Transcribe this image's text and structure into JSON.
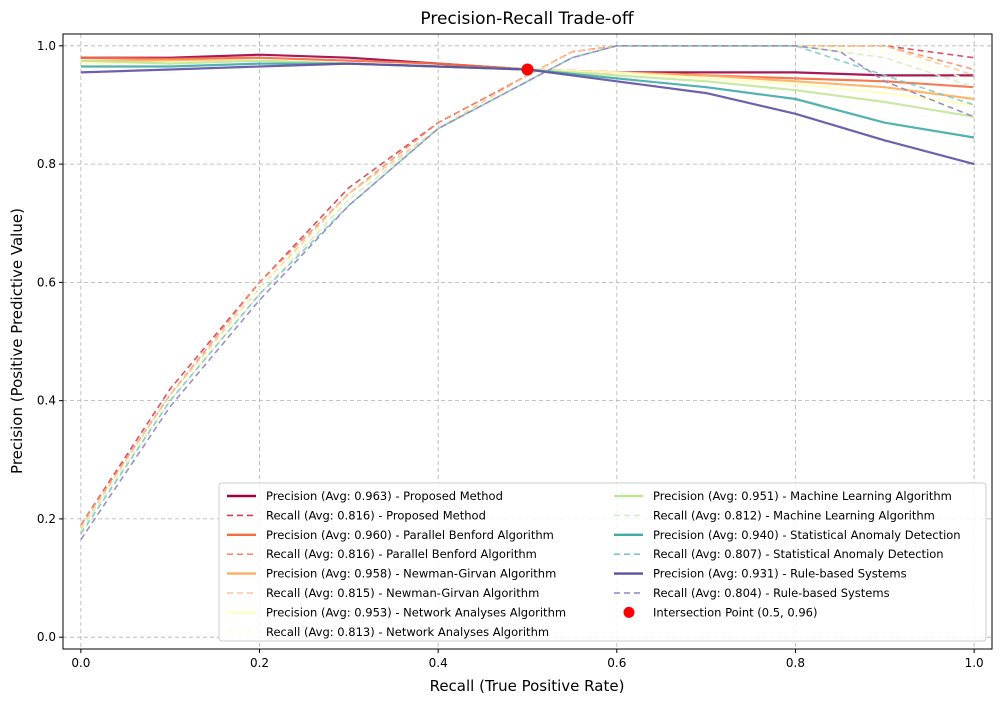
{
  "chart_data": {
    "type": "line",
    "title": "Precision-Recall Trade-off",
    "xlabel": "Recall (True Positive Rate)",
    "ylabel": "Precision (Positive Predictive Value)",
    "xlim": [
      -0.02,
      1.02
    ],
    "ylim": [
      -0.02,
      1.02
    ],
    "xticks": [
      0.0,
      0.2,
      0.4,
      0.6,
      0.8,
      1.0
    ],
    "yticks": [
      0.0,
      0.2,
      0.4,
      0.6,
      0.8,
      1.0
    ],
    "xtick_labels": [
      "0.0",
      "0.2",
      "0.4",
      "0.6",
      "0.8",
      "1.0"
    ],
    "ytick_labels": [
      "0.0",
      "0.2",
      "0.4",
      "0.6",
      "0.8",
      "1.0"
    ],
    "grid": true,
    "legend_position": "lower-right",
    "series": [
      {
        "name": "Precision (Avg: 0.963) - Proposed Method",
        "kind": "precision",
        "color": "#9e0142",
        "x": [
          0.0,
          0.1,
          0.2,
          0.3,
          0.4,
          0.5,
          0.6,
          0.7,
          0.8,
          0.9,
          1.0
        ],
        "y": [
          0.98,
          0.98,
          0.985,
          0.98,
          0.97,
          0.96,
          0.955,
          0.955,
          0.955,
          0.95,
          0.95
        ]
      },
      {
        "name": "Recall (Avg: 0.816) - Proposed Method",
        "kind": "recall",
        "color": "#d53e4f",
        "x": [
          0.0,
          0.1,
          0.2,
          0.3,
          0.4,
          0.5,
          0.55,
          0.6,
          0.7,
          0.8,
          0.9,
          1.0
        ],
        "y": [
          0.19,
          0.42,
          0.6,
          0.76,
          0.87,
          0.95,
          0.99,
          1.0,
          1.0,
          1.0,
          1.0,
          0.98
        ]
      },
      {
        "name": "Precision (Avg: 0.960) - Parallel Benford Algorithm",
        "kind": "precision",
        "color": "#f46d43",
        "x": [
          0.0,
          0.1,
          0.2,
          0.3,
          0.4,
          0.5,
          0.6,
          0.7,
          0.8,
          0.9,
          1.0
        ],
        "y": [
          0.98,
          0.978,
          0.98,
          0.975,
          0.97,
          0.96,
          0.955,
          0.95,
          0.945,
          0.94,
          0.93
        ]
      },
      {
        "name": "Recall (Avg: 0.816) - Parallel Benford Algorithm",
        "kind": "recall",
        "color": "#f98e65",
        "x": [
          0.0,
          0.1,
          0.2,
          0.3,
          0.4,
          0.5,
          0.55,
          0.6,
          0.7,
          0.8,
          0.9,
          1.0
        ],
        "y": [
          0.19,
          0.41,
          0.6,
          0.75,
          0.87,
          0.95,
          0.99,
          1.0,
          1.0,
          1.0,
          1.0,
          0.96
        ]
      },
      {
        "name": "Precision (Avg: 0.958) - Newman-Girvan Algorithm",
        "kind": "precision",
        "color": "#fdae61",
        "x": [
          0.0,
          0.1,
          0.2,
          0.3,
          0.4,
          0.5,
          0.6,
          0.7,
          0.8,
          0.9,
          1.0
        ],
        "y": [
          0.975,
          0.975,
          0.975,
          0.97,
          0.965,
          0.96,
          0.955,
          0.95,
          0.94,
          0.93,
          0.91
        ]
      },
      {
        "name": "Recall (Avg: 0.815) - Newman-Girvan Algorithm",
        "kind": "recall",
        "color": "#fec98f",
        "x": [
          0.0,
          0.1,
          0.2,
          0.3,
          0.4,
          0.5,
          0.55,
          0.6,
          0.7,
          0.8,
          0.9,
          1.0
        ],
        "y": [
          0.185,
          0.41,
          0.59,
          0.75,
          0.86,
          0.95,
          0.99,
          1.0,
          1.0,
          1.0,
          1.0,
          0.95
        ]
      },
      {
        "name": "Precision (Avg: 0.953) - Network Analyses Algorithm",
        "kind": "precision",
        "color": "#ffffbf",
        "x": [
          0.0,
          0.1,
          0.2,
          0.3,
          0.4,
          0.5,
          0.6,
          0.7,
          0.8,
          0.9,
          1.0
        ],
        "y": [
          0.97,
          0.972,
          0.975,
          0.97,
          0.965,
          0.96,
          0.955,
          0.945,
          0.935,
          0.92,
          0.9
        ]
      },
      {
        "name": "Recall (Avg: 0.813) - Network Analyses Algorithm",
        "kind": "recall",
        "color": "#ffffd0",
        "x": [
          0.0,
          0.1,
          0.2,
          0.3,
          0.4,
          0.5,
          0.55,
          0.6,
          0.7,
          0.8,
          0.9,
          1.0
        ],
        "y": [
          0.18,
          0.4,
          0.59,
          0.74,
          0.86,
          0.94,
          0.98,
          1.0,
          1.0,
          1.0,
          0.99,
          0.94
        ]
      },
      {
        "name": "Precision (Avg: 0.951) - Machine Learning Algorithm",
        "kind": "precision",
        "color": "#c2e699",
        "x": [
          0.0,
          0.1,
          0.2,
          0.3,
          0.4,
          0.5,
          0.6,
          0.7,
          0.8,
          0.9,
          1.0
        ],
        "y": [
          0.975,
          0.97,
          0.975,
          0.97,
          0.965,
          0.96,
          0.95,
          0.94,
          0.925,
          0.905,
          0.88
        ]
      },
      {
        "name": "Recall (Avg: 0.812) - Machine Learning Algorithm",
        "kind": "recall",
        "color": "#d4edc0",
        "x": [
          0.0,
          0.1,
          0.2,
          0.3,
          0.4,
          0.5,
          0.55,
          0.6,
          0.7,
          0.8,
          0.9,
          1.0
        ],
        "y": [
          0.18,
          0.4,
          0.58,
          0.74,
          0.86,
          0.94,
          0.98,
          1.0,
          1.0,
          1.0,
          0.98,
          0.93
        ]
      },
      {
        "name": "Precision (Avg: 0.940) - Statistical Anomaly Detection",
        "kind": "precision",
        "color": "#3faaa8",
        "x": [
          0.0,
          0.1,
          0.2,
          0.3,
          0.4,
          0.5,
          0.6,
          0.7,
          0.8,
          0.9,
          1.0
        ],
        "y": [
          0.965,
          0.965,
          0.97,
          0.97,
          0.965,
          0.96,
          0.945,
          0.93,
          0.91,
          0.87,
          0.845
        ]
      },
      {
        "name": "Recall (Avg: 0.807) - Statistical Anomaly Detection",
        "kind": "recall",
        "color": "#7fc8c6",
        "x": [
          0.0,
          0.1,
          0.2,
          0.3,
          0.4,
          0.5,
          0.55,
          0.6,
          0.7,
          0.8,
          0.9,
          1.0
        ],
        "y": [
          0.175,
          0.4,
          0.58,
          0.73,
          0.86,
          0.94,
          0.98,
          1.0,
          1.0,
          1.0,
          0.95,
          0.9
        ]
      },
      {
        "name": "Precision (Avg: 0.931) - Rule-based Systems",
        "kind": "precision",
        "color": "#5e4fa2",
        "x": [
          0.0,
          0.1,
          0.2,
          0.3,
          0.4,
          0.5,
          0.6,
          0.7,
          0.8,
          0.9,
          1.0
        ],
        "y": [
          0.955,
          0.96,
          0.965,
          0.97,
          0.965,
          0.96,
          0.94,
          0.92,
          0.885,
          0.84,
          0.8
        ]
      },
      {
        "name": "Recall (Avg: 0.804) - Rule-based Systems",
        "kind": "recall",
        "color": "#8e84c0",
        "x": [
          0.0,
          0.1,
          0.2,
          0.3,
          0.4,
          0.5,
          0.55,
          0.6,
          0.7,
          0.8,
          0.85,
          0.9,
          1.0
        ],
        "y": [
          0.165,
          0.39,
          0.57,
          0.73,
          0.86,
          0.94,
          0.98,
          1.0,
          1.0,
          1.0,
          0.99,
          0.94,
          0.88
        ]
      }
    ],
    "intersection": {
      "name": "Intersection Point (0.5, 0.96)",
      "x": 0.5,
      "y": 0.96,
      "color": "#ff0000"
    }
  }
}
